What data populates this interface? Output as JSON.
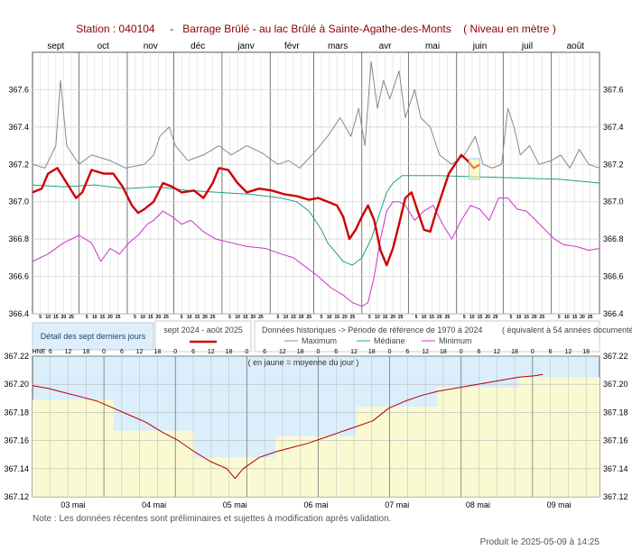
{
  "header": {
    "station_label": "Station : 040104",
    "station_name": "Barrage Brûlé - au lac Brûlé à Sainte-Agathe-des-Monts",
    "units": "( Niveau en mètre )"
  },
  "legend": {
    "recent_box": "Détail des sept derniers jours",
    "current_label": "sept 2024 - août 2025",
    "historic_label": "Données historiques -> Période de référence  de 1970 à 2024",
    "equivalent_label": "( équivalent à 54 années documentées )",
    "max_label": "Maximum",
    "median_label": "Médiane",
    "min_label": "Minimum",
    "colors": {
      "current": "#cc0000",
      "max": "#888888",
      "median": "#20a080",
      "min": "#cc33cc"
    }
  },
  "footer": {
    "note": "Note : Les données récentes sont préliminaires et sujettes à modification après validation.",
    "produced": "Produit le 2025-05-09 à 14:25"
  },
  "chart_data": [
    {
      "type": "line",
      "months": [
        "sept",
        "oct",
        "nov",
        "déc",
        "janv",
        "févr",
        "mars",
        "avr",
        "mai",
        "juin",
        "juil",
        "août"
      ],
      "day_ticks": [
        "5",
        "10",
        "15",
        "20",
        "25"
      ],
      "ylim": [
        366.4,
        367.8
      ],
      "yticks": [
        "366.4",
        "366.6",
        "366.8",
        "367.0",
        "367.2",
        "367.4",
        "367.6"
      ],
      "x_range": [
        0,
        365
      ],
      "series": [
        {
          "name": "Maximum",
          "values": [
            [
              0,
              367.2
            ],
            [
              8,
              367.18
            ],
            [
              15,
              367.3
            ],
            [
              18,
              367.65
            ],
            [
              22,
              367.3
            ],
            [
              30,
              367.2
            ],
            [
              38,
              367.25
            ],
            [
              50,
              367.22
            ],
            [
              60,
              367.18
            ],
            [
              72,
              367.2
            ],
            [
              78,
              367.25
            ],
            [
              82,
              367.35
            ],
            [
              88,
              367.4
            ],
            [
              92,
              367.3
            ],
            [
              100,
              367.22
            ],
            [
              110,
              367.25
            ],
            [
              120,
              367.3
            ],
            [
              128,
              367.25
            ],
            [
              138,
              367.3
            ],
            [
              148,
              367.26
            ],
            [
              158,
              367.2
            ],
            [
              165,
              367.22
            ],
            [
              172,
              367.18
            ],
            [
              180,
              367.25
            ],
            [
              190,
              367.35
            ],
            [
              198,
              367.45
            ],
            [
              205,
              367.35
            ],
            [
              210,
              367.5
            ],
            [
              214,
              367.3
            ],
            [
              218,
              367.75
            ],
            [
              222,
              367.5
            ],
            [
              226,
              367.65
            ],
            [
              230,
              367.55
            ],
            [
              236,
              367.7
            ],
            [
              240,
              367.45
            ],
            [
              246,
              367.6
            ],
            [
              250,
              367.45
            ],
            [
              256,
              367.4
            ],
            [
              262,
              367.25
            ],
            [
              270,
              367.2
            ],
            [
              278,
              367.25
            ],
            [
              285,
              367.35
            ],
            [
              290,
              367.2
            ],
            [
              296,
              367.18
            ],
            [
              302,
              367.2
            ],
            [
              306,
              367.5
            ],
            [
              310,
              367.4
            ],
            [
              314,
              367.25
            ],
            [
              320,
              367.3
            ],
            [
              326,
              367.2
            ],
            [
              334,
              367.22
            ],
            [
              340,
              367.25
            ],
            [
              346,
              367.18
            ],
            [
              352,
              367.28
            ],
            [
              358,
              367.2
            ],
            [
              365,
              367.18
            ]
          ]
        },
        {
          "name": "Médiane",
          "values": [
            [
              0,
              367.09
            ],
            [
              20,
              367.08
            ],
            [
              40,
              367.09
            ],
            [
              60,
              367.07
            ],
            [
              80,
              367.08
            ],
            [
              100,
              367.06
            ],
            [
              120,
              367.05
            ],
            [
              140,
              367.04
            ],
            [
              160,
              367.02
            ],
            [
              170,
              367.0
            ],
            [
              178,
              366.95
            ],
            [
              182,
              366.9
            ],
            [
              186,
              366.85
            ],
            [
              190,
              366.78
            ],
            [
              196,
              366.72
            ],
            [
              200,
              366.68
            ],
            [
              206,
              366.66
            ],
            [
              212,
              366.7
            ],
            [
              218,
              366.8
            ],
            [
              224,
              366.95
            ],
            [
              228,
              367.05
            ],
            [
              232,
              367.1
            ],
            [
              238,
              367.14
            ],
            [
              260,
              367.14
            ],
            [
              300,
              367.13
            ],
            [
              340,
              367.12
            ],
            [
              365,
              367.1
            ]
          ]
        },
        {
          "name": "Minimum",
          "values": [
            [
              0,
              366.68
            ],
            [
              10,
              366.72
            ],
            [
              20,
              366.78
            ],
            [
              30,
              366.82
            ],
            [
              38,
              366.78
            ],
            [
              44,
              366.68
            ],
            [
              50,
              366.75
            ],
            [
              56,
              366.72
            ],
            [
              62,
              366.78
            ],
            [
              68,
              366.82
            ],
            [
              74,
              366.88
            ],
            [
              78,
              366.9
            ],
            [
              84,
              366.95
            ],
            [
              90,
              366.92
            ],
            [
              96,
              366.88
            ],
            [
              102,
              366.9
            ],
            [
              110,
              366.84
            ],
            [
              118,
              366.8
            ],
            [
              128,
              366.78
            ],
            [
              138,
              366.76
            ],
            [
              150,
              366.75
            ],
            [
              160,
              366.72
            ],
            [
              168,
              366.7
            ],
            [
              176,
              366.65
            ],
            [
              184,
              366.6
            ],
            [
              192,
              366.54
            ],
            [
              200,
              366.5
            ],
            [
              206,
              366.46
            ],
            [
              212,
              366.44
            ],
            [
              216,
              366.46
            ],
            [
              220,
              366.6
            ],
            [
              224,
              366.8
            ],
            [
              228,
              366.95
            ],
            [
              232,
              367.0
            ],
            [
              236,
              367.0
            ],
            [
              240,
              366.98
            ],
            [
              246,
              366.9
            ],
            [
              252,
              366.95
            ],
            [
              258,
              366.98
            ],
            [
              264,
              366.88
            ],
            [
              270,
              366.8
            ],
            [
              276,
              366.9
            ],
            [
              282,
              366.98
            ],
            [
              288,
              366.96
            ],
            [
              294,
              366.9
            ],
            [
              300,
              367.02
            ],
            [
              306,
              367.02
            ],
            [
              312,
              366.96
            ],
            [
              318,
              366.95
            ],
            [
              324,
              366.9
            ],
            [
              330,
              366.85
            ],
            [
              336,
              366.8
            ],
            [
              342,
              366.77
            ],
            [
              350,
              366.76
            ],
            [
              358,
              366.74
            ],
            [
              365,
              366.75
            ]
          ]
        },
        {
          "name": "sept 2024 - août 2025",
          "values": [
            [
              0,
              367.05
            ],
            [
              6,
              367.07
            ],
            [
              10,
              367.15
            ],
            [
              16,
              367.18
            ],
            [
              22,
              367.1
            ],
            [
              28,
              367.02
            ],
            [
              32,
              367.05
            ],
            [
              38,
              367.17
            ],
            [
              46,
              367.15
            ],
            [
              52,
              367.15
            ],
            [
              58,
              367.08
            ],
            [
              64,
              366.98
            ],
            [
              68,
              366.94
            ],
            [
              72,
              366.96
            ],
            [
              78,
              367.0
            ],
            [
              84,
              367.1
            ],
            [
              90,
              367.08
            ],
            [
              96,
              367.05
            ],
            [
              104,
              367.06
            ],
            [
              110,
              367.02
            ],
            [
              116,
              367.1
            ],
            [
              120,
              367.18
            ],
            [
              126,
              367.17
            ],
            [
              132,
              367.1
            ],
            [
              138,
              367.05
            ],
            [
              146,
              367.07
            ],
            [
              154,
              367.06
            ],
            [
              162,
              367.04
            ],
            [
              170,
              367.03
            ],
            [
              178,
              367.01
            ],
            [
              184,
              367.02
            ],
            [
              190,
              367.0
            ],
            [
              196,
              366.98
            ],
            [
              200,
              366.92
            ],
            [
              204,
              366.8
            ],
            [
              208,
              366.85
            ],
            [
              212,
              366.92
            ],
            [
              216,
              366.98
            ],
            [
              220,
              366.9
            ],
            [
              224,
              366.74
            ],
            [
              228,
              366.66
            ],
            [
              232,
              366.75
            ],
            [
              236,
              366.88
            ],
            [
              240,
              367.02
            ],
            [
              244,
              367.05
            ],
            [
              248,
              366.95
            ],
            [
              252,
              366.85
            ],
            [
              256,
              366.84
            ],
            [
              260,
              366.95
            ],
            [
              264,
              367.05
            ],
            [
              268,
              367.15
            ],
            [
              272,
              367.2
            ],
            [
              276,
              367.25
            ],
            [
              280,
              367.22
            ],
            [
              284,
              367.18
            ],
            [
              288,
              367.2
            ]
          ]
        }
      ]
    },
    {
      "type": "line",
      "days": [
        "03 mai",
        "04 mai",
        "05 mai",
        "06 mai",
        "07 mai",
        "08 mai",
        "09 mai"
      ],
      "hours": [
        "HNE",
        "6",
        "12",
        "18",
        "0",
        "6",
        "12",
        "18",
        "0",
        "6",
        "12",
        "18",
        "0",
        "6",
        "12",
        "18",
        "0",
        "6",
        "12",
        "18",
        "0",
        "6",
        "12",
        "18",
        "0",
        "6",
        "12",
        "18",
        "0",
        "6",
        "12",
        "18"
      ],
      "annotation": "( en jaune = moyenne du jour )",
      "ylim": [
        367.12,
        367.22
      ],
      "yticks": [
        "367.12",
        "367.14",
        "367.16",
        "367.18",
        "367.20",
        "367.22"
      ],
      "daily_mean": [
        367.189,
        367.167,
        367.148,
        367.163,
        367.184,
        367.198,
        367.205
      ],
      "values": [
        [
          0,
          367.199
        ],
        [
          0.2,
          367.197
        ],
        [
          0.4,
          367.194
        ],
        [
          0.6,
          367.191
        ],
        [
          0.8,
          367.188
        ],
        [
          1.0,
          367.183
        ],
        [
          1.2,
          367.178
        ],
        [
          1.4,
          367.173
        ],
        [
          1.6,
          367.166
        ],
        [
          1.8,
          367.16
        ],
        [
          2.0,
          367.152
        ],
        [
          2.2,
          367.145
        ],
        [
          2.4,
          367.14
        ],
        [
          2.5,
          367.133
        ],
        [
          2.6,
          367.14
        ],
        [
          2.8,
          367.148
        ],
        [
          3.0,
          367.152
        ],
        [
          3.2,
          367.155
        ],
        [
          3.4,
          367.158
        ],
        [
          3.6,
          367.162
        ],
        [
          3.8,
          367.166
        ],
        [
          4.0,
          367.17
        ],
        [
          4.2,
          367.174
        ],
        [
          4.4,
          367.183
        ],
        [
          4.6,
          367.188
        ],
        [
          4.8,
          367.192
        ],
        [
          5.0,
          367.195
        ],
        [
          5.2,
          367.197
        ],
        [
          5.4,
          367.199
        ],
        [
          5.6,
          367.201
        ],
        [
          5.8,
          367.203
        ],
        [
          6.0,
          367.205
        ],
        [
          6.2,
          367.206
        ],
        [
          6.3,
          367.207
        ]
      ]
    }
  ]
}
